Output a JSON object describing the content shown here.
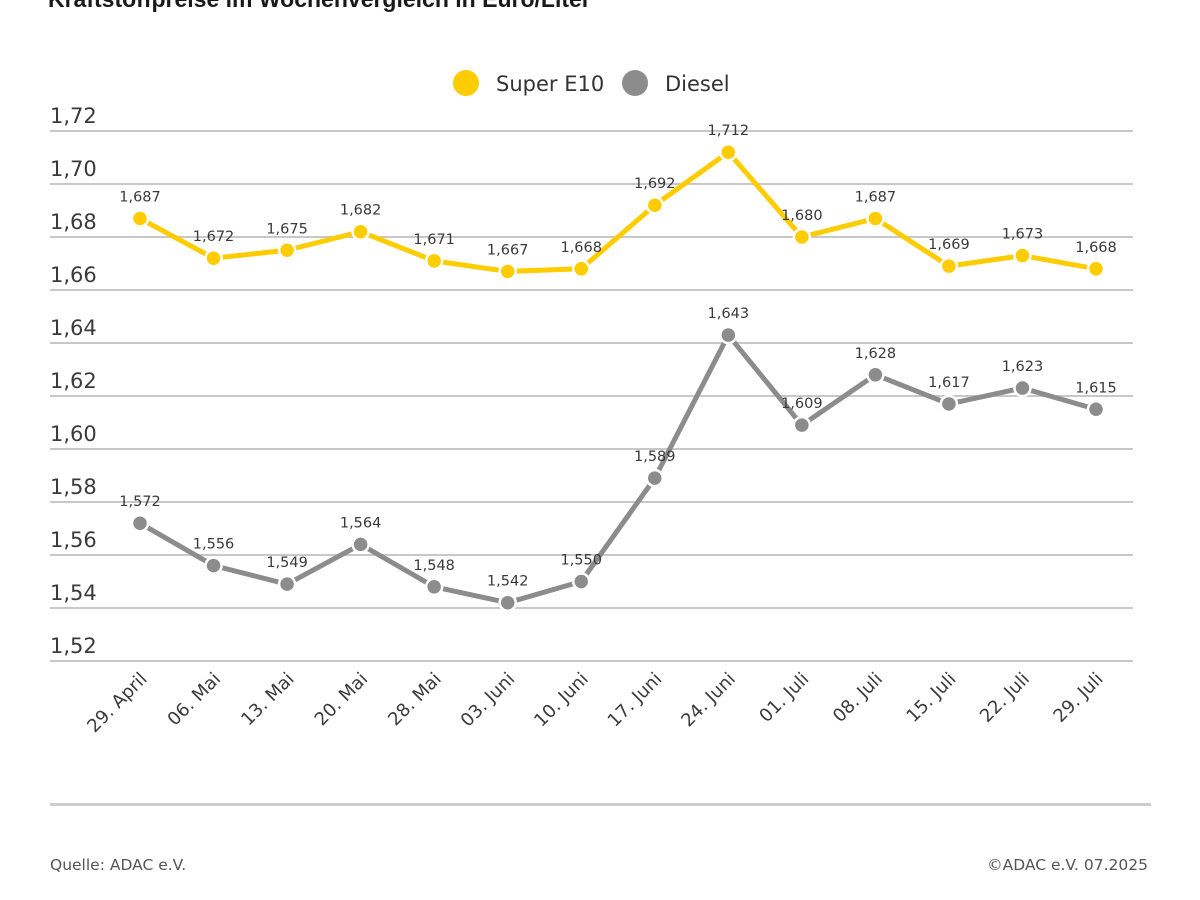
{
  "title": "Kraftstoffpreise im Wochenvergleich in Euro/Liter",
  "colors": {
    "super_e10": "#FFCC00",
    "diesel": "#8C8C8C",
    "grid": "#c8c8c8"
  },
  "legend": [
    {
      "label": "Super E10",
      "icon": "circle-marker-icon"
    },
    {
      "label": "Diesel",
      "icon": "circle-marker-icon"
    }
  ],
  "footer": {
    "source": "Quelle: ADAC e.V.",
    "copyright": "©ADAC e.V. 07.2025"
  },
  "chart_data": {
    "type": "line",
    "title": "Kraftstoffpreise im Wochenvergleich in Euro/Liter",
    "xlabel": "",
    "ylabel": "",
    "ylim": [
      1.52,
      1.72
    ],
    "grid": true,
    "legend_position": "top-center",
    "y_ticks": [
      "1,72",
      "1,70",
      "1,68",
      "1,66",
      "1,64",
      "1,62",
      "1,60",
      "1,58",
      "1,56",
      "1,54",
      "1,52"
    ],
    "y_tick_values": [
      1.72,
      1.7,
      1.68,
      1.66,
      1.64,
      1.62,
      1.6,
      1.58,
      1.56,
      1.54,
      1.52
    ],
    "categories": [
      "29. April",
      "06. Mai",
      "13. Mai",
      "20. Mai",
      "28. Mai",
      "03. Juni",
      "10. Juni",
      "17. Juni",
      "24. Juni",
      "01. Juli",
      "08. Juli",
      "15. Juli",
      "22. Juli",
      "29. Juli"
    ],
    "series": [
      {
        "name": "Super E10",
        "values": [
          1.687,
          1.672,
          1.675,
          1.682,
          1.671,
          1.667,
          1.668,
          1.692,
          1.712,
          1.68,
          1.687,
          1.669,
          1.673,
          1.668
        ],
        "labels": [
          "1,687",
          "1,672",
          "1,675",
          "1,682",
          "1,671",
          "1,667",
          "1,668",
          "1,692",
          "1,712",
          "1,680",
          "1,687",
          "1,669",
          "1,673",
          "1,668"
        ]
      },
      {
        "name": "Diesel",
        "values": [
          1.572,
          1.556,
          1.549,
          1.564,
          1.548,
          1.542,
          1.55,
          1.589,
          1.643,
          1.609,
          1.628,
          1.617,
          1.623,
          1.615
        ],
        "labels": [
          "1,572",
          "1,556",
          "1,549",
          "1,564",
          "1,548",
          "1,542",
          "1,550",
          "1,589",
          "1,643",
          "1,609",
          "1,628",
          "1,617",
          "1,623",
          "1,615"
        ]
      }
    ]
  }
}
